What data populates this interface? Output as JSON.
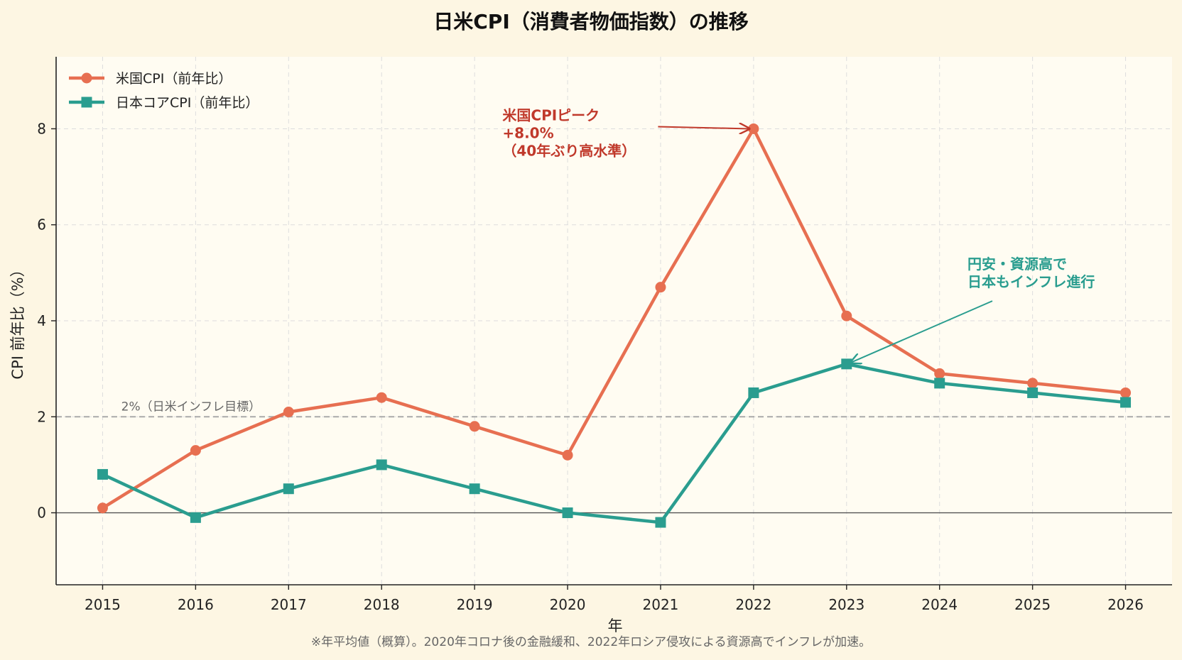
{
  "chart_data": {
    "type": "line",
    "title": "日米CPI（消費者物価指数）の推移",
    "xlabel": "年",
    "ylabel": "CPI 前年比（%）",
    "x": [
      2015,
      2016,
      2017,
      2018,
      2019,
      2020,
      2021,
      2022,
      2023,
      2024,
      2025,
      2026
    ],
    "xlim": [
      2014.5,
      2026.5
    ],
    "ylim": [
      -1.5,
      9.5
    ],
    "yticks": [
      0,
      2,
      4,
      6,
      8
    ],
    "grid": true,
    "legend_position": "top-left",
    "series": [
      {
        "name": "米国CPI（前年比）",
        "color": "#e76f51",
        "marker": "circle",
        "values": [
          0.1,
          1.3,
          2.1,
          2.4,
          1.8,
          1.2,
          4.7,
          8.0,
          4.1,
          2.9,
          2.7,
          2.5
        ]
      },
      {
        "name": "日本コアCPI（前年比）",
        "color": "#2a9d8f",
        "marker": "square",
        "values": [
          0.8,
          -0.1,
          0.5,
          1.0,
          0.5,
          0.0,
          -0.2,
          2.5,
          3.1,
          2.7,
          2.5,
          2.3
        ]
      }
    ],
    "reference_line": {
      "value": 2,
      "label": "2%（日米インフレ目標）",
      "color": "#aaaaaa"
    },
    "annotations": [
      {
        "lines": [
          "米国CPIピーク",
          "+8.0%",
          "（40年ぶり高水準）"
        ],
        "target_x": 2022,
        "target_y": 8.0,
        "text_x": 2019.3,
        "text_y": 8.0,
        "color": "#c0392b"
      },
      {
        "lines": [
          "円安・資源高で",
          "日本もインフレ進行"
        ],
        "target_x": 2023,
        "target_y": 3.1,
        "text_x": 2024.3,
        "text_y": 4.9,
        "color": "#2a9d8f"
      }
    ],
    "footnote": "※年平均値（概算）。2020年コロナ後の金融緩和、2022年ロシア侵攻による資源高でインフレが加速。"
  },
  "colors": {
    "page_background": "#fdf6e3",
    "plot_background": "#fffcf2",
    "grid": "#dddddd",
    "axis": "#222222",
    "zero_line": "#555555"
  }
}
